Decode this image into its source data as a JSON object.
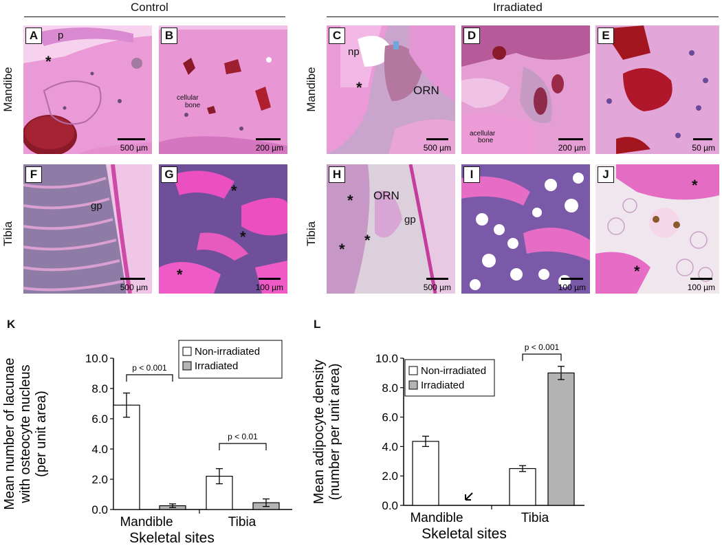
{
  "groups": {
    "control": "Control",
    "irradiated": "Irradiated"
  },
  "rows": {
    "mandible": "Mandibe",
    "tibia": "Tibia"
  },
  "panels": {
    "A": {
      "letter": "A",
      "scale": "500 µm",
      "labels": [
        "p"
      ]
    },
    "B": {
      "letter": "B",
      "scale": "200 µm",
      "labels": [
        "cellular",
        "bone"
      ]
    },
    "C": {
      "letter": "C",
      "scale": "500 µm",
      "labels": [
        "np",
        "ORN"
      ]
    },
    "D": {
      "letter": "D",
      "scale": "200 µm",
      "labels": [
        "acellular",
        "bone"
      ]
    },
    "E": {
      "letter": "E",
      "scale": "50 µm",
      "labels": []
    },
    "F": {
      "letter": "F",
      "scale": "500 µm",
      "labels": [
        "gp"
      ]
    },
    "G": {
      "letter": "G",
      "scale": "100 µm",
      "labels": []
    },
    "H": {
      "letter": "H",
      "scale": "500 µm",
      "labels": [
        "ORN",
        "gp"
      ]
    },
    "I": {
      "letter": "I",
      "scale": "100 µm",
      "labels": []
    },
    "J": {
      "letter": "J",
      "scale": "100 µm",
      "labels": []
    }
  },
  "star_symbol": "*",
  "colors": {
    "hne_pink": "#e27fc8",
    "hne_light": "#f2b5e4",
    "hne_purple": "#7b4fa0",
    "blood_red": "#a3151f",
    "bar_nonirr": "#ffffff",
    "bar_irr": "#b3b3b3"
  },
  "chart_data": [
    {
      "letter": "K",
      "type": "bar",
      "title": "",
      "xlabel": "Skeletal sites",
      "ylabel": "Mean number of lacunae with osteocyte nucleus (per unit area)",
      "ylabel_lines": [
        "Mean number of lacunae",
        "with osteocyte nucleus",
        "(per unit area)"
      ],
      "categories": [
        "Mandible",
        "Tibia"
      ],
      "ylim": [
        0,
        10
      ],
      "yticks": [
        "0.0",
        "2.0",
        "4.0",
        "6.0",
        "8.0",
        "10.0"
      ],
      "legend_position": "top-right",
      "series": [
        {
          "name": "Non-irradiated",
          "values": [
            6.9,
            2.2
          ],
          "errors": [
            0.8,
            0.5
          ],
          "color": "#ffffff"
        },
        {
          "name": "Irradiated",
          "values": [
            0.25,
            0.45
          ],
          "errors": [
            0.12,
            0.25
          ],
          "color": "#b3b3b3"
        }
      ],
      "annotations": [
        {
          "text": "p < 0.001",
          "category": 0
        },
        {
          "text": "p < 0.01",
          "category": 1
        }
      ]
    },
    {
      "letter": "L",
      "type": "bar",
      "title": "",
      "xlabel": "Skeletal sites",
      "ylabel": "Mean adipocyte density (number per unit area)",
      "ylabel_lines": [
        "Mean adipocyte density",
        "(number per unit area)"
      ],
      "categories": [
        "Mandible",
        "Tibia"
      ],
      "ylim": [
        0,
        10
      ],
      "yticks": [
        "0.0",
        "2.0",
        "4.0",
        "6.0",
        "8.0",
        "10.0"
      ],
      "legend_position": "top-left",
      "series": [
        {
          "name": "Non-irradiated",
          "values": [
            4.35,
            2.5
          ],
          "errors": [
            0.35,
            0.2
          ],
          "color": "#ffffff"
        },
        {
          "name": "Irradiated",
          "values": [
            0.0,
            9.0
          ],
          "errors": [
            0,
            0.45
          ],
          "color": "#b3b3b3"
        }
      ],
      "annotations": [
        {
          "text": "p < 0.001",
          "category": 1
        }
      ]
    }
  ]
}
